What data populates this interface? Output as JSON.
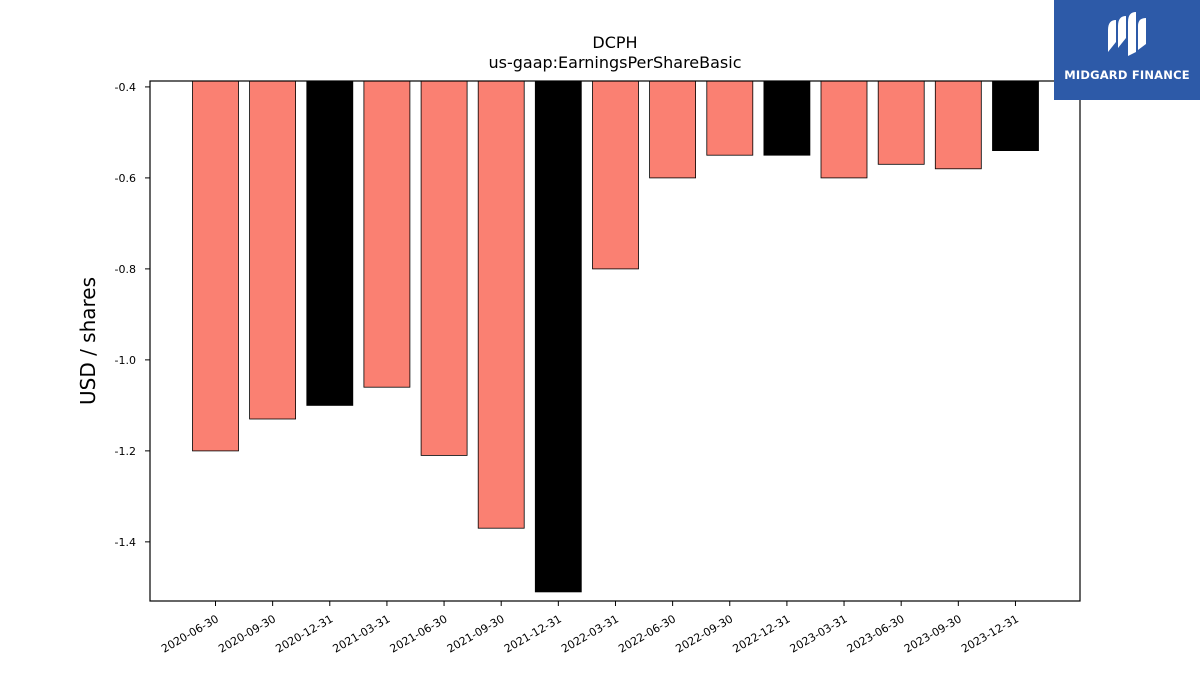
{
  "chart_data": {
    "type": "bar",
    "title": "DCPH",
    "subtitle": "us-gaap:EarningsPerShareBasic",
    "xlabel": "",
    "ylabel": "USD / shares",
    "ylim": [
      -1.53,
      -0.387
    ],
    "yticks": [
      "-0.4",
      "-0.6",
      "-0.8",
      "-1.0",
      "-1.2",
      "-1.4"
    ],
    "ytick_values": [
      -0.4,
      -0.6,
      -0.8,
      -1.0,
      -1.2,
      -1.4
    ],
    "grid": false,
    "categories": [
      "2020-06-30",
      "2020-09-30",
      "2020-12-31",
      "2021-03-31",
      "2021-06-30",
      "2021-09-30",
      "2021-12-31",
      "2022-03-31",
      "2022-06-30",
      "2022-09-30",
      "2022-12-31",
      "2023-03-31",
      "2023-06-30",
      "2023-09-30",
      "2023-12-31"
    ],
    "values": [
      -1.2,
      -1.13,
      -1.1,
      -1.06,
      -1.21,
      -1.37,
      -1.51,
      -0.8,
      -0.6,
      -0.55,
      -0.55,
      -0.6,
      -0.57,
      -0.58,
      -0.54
    ],
    "bar_colors": [
      "#fa8072",
      "#fa8072",
      "#000000",
      "#fa8072",
      "#fa8072",
      "#fa8072",
      "#000000",
      "#fa8072",
      "#fa8072",
      "#fa8072",
      "#000000",
      "#fa8072",
      "#fa8072",
      "#fa8072",
      "#000000"
    ]
  },
  "logo": {
    "text": "MIDGARD FINANCE",
    "background": "#2d5aa8"
  }
}
